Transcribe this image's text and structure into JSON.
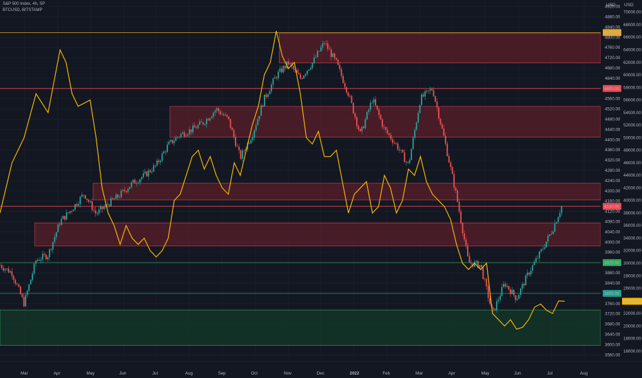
{
  "legend": {
    "main": "S&P 500 Index, 4h, SP",
    "overlay": "BTCUSD, BITSTAMP"
  },
  "axis_units": {
    "left_scale": "USD",
    "right_scale": "USD"
  },
  "colors": {
    "background": "#131722",
    "btc_line": "#f5b800",
    "candle_up": "#26a69a",
    "candle_down": "#ef5350",
    "red_zone": "#5a1f2a",
    "green_zone": "#143a2a"
  },
  "chart_data": {
    "type": "line",
    "x_labels": [
      "Mar",
      "Apr",
      "May",
      "Jun",
      "Jul",
      "Aug",
      "Sep",
      "Oct",
      "Nov",
      "Dec",
      "2022",
      "Feb",
      "Mar",
      "Apr",
      "May",
      "Jun",
      "Jul",
      "Aug"
    ],
    "spx_axis": {
      "ticks": [
        4920,
        4880,
        4840,
        4800,
        4760,
        4720,
        4680,
        4640,
        4600,
        4560,
        4520,
        4480,
        4440,
        4400,
        4360,
        4320,
        4280,
        4240,
        4200,
        4160,
        4120,
        4080,
        4040,
        4000,
        3960,
        3920,
        3880,
        3840,
        3800,
        3760,
        3720,
        3680,
        3640,
        3600,
        3560
      ],
      "range": [
        3550,
        4935
      ]
    },
    "btc_axis": {
      "ticks": [
        70000,
        68000,
        66000,
        64000,
        62000,
        60000,
        58000,
        56000,
        54000,
        52000,
        50000,
        48000,
        46000,
        44000,
        42000,
        40000,
        38000,
        36000,
        34000,
        32000,
        30000,
        28000,
        26000,
        24000,
        22000,
        20000,
        18000,
        16000
      ],
      "range": [
        15000,
        71500
      ]
    },
    "levels": [
      {
        "value": 4818.62,
        "label": "4818.62",
        "color": "#e6a82a"
      },
      {
        "value": 4600.0,
        "label": "4600.00",
        "color": "#e84a55"
      },
      {
        "value": 4140.0,
        "label": "4140.00",
        "color": "#e84a55"
      },
      {
        "value": 3920.0,
        "label": "3920.00",
        "color": "#2eaa5c"
      },
      {
        "value": 3800.0,
        "label": "3800.00",
        "color": "#1f9e8e"
      }
    ],
    "btc_last": {
      "value": 23933.95,
      "label": "23933.95"
    },
    "zones": [
      {
        "kind": "resistance",
        "from": 4700,
        "to": 4815,
        "x_start": 0.465
      },
      {
        "kind": "resistance",
        "from": 4410,
        "to": 4530,
        "x_start": 0.283
      },
      {
        "kind": "resistance",
        "from": 4165,
        "to": 4230,
        "x_start": 0.155
      },
      {
        "kind": "resistance",
        "from": 3985,
        "to": 4075,
        "x_start": 0.058
      },
      {
        "kind": "support",
        "from": 3597,
        "to": 3735,
        "x_start": 0.0
      }
    ],
    "series": [
      {
        "name": "S&P 500 Index, 4h, SP",
        "type": "candles",
        "points": [
          [
            0,
            3910
          ],
          [
            0.02,
            3880
          ],
          [
            0.04,
            3760
          ],
          [
            0.06,
            3930
          ],
          [
            0.08,
            3950
          ],
          [
            0.1,
            4080
          ],
          [
            0.12,
            4130
          ],
          [
            0.14,
            4190
          ],
          [
            0.16,
            4110
          ],
          [
            0.18,
            4150
          ],
          [
            0.2,
            4185
          ],
          [
            0.22,
            4230
          ],
          [
            0.24,
            4260
          ],
          [
            0.26,
            4300
          ],
          [
            0.28,
            4380
          ],
          [
            0.3,
            4420
          ],
          [
            0.32,
            4440
          ],
          [
            0.34,
            4470
          ],
          [
            0.36,
            4520
          ],
          [
            0.38,
            4480
          ],
          [
            0.4,
            4330
          ],
          [
            0.42,
            4420
          ],
          [
            0.44,
            4560
          ],
          [
            0.46,
            4650
          ],
          [
            0.48,
            4700
          ],
          [
            0.5,
            4640
          ],
          [
            0.52,
            4700
          ],
          [
            0.54,
            4780
          ],
          [
            0.56,
            4700
          ],
          [
            0.58,
            4580
          ],
          [
            0.6,
            4420
          ],
          [
            0.62,
            4560
          ],
          [
            0.64,
            4440
          ],
          [
            0.66,
            4380
          ],
          [
            0.68,
            4300
          ],
          [
            0.7,
            4560
          ],
          [
            0.72,
            4600
          ],
          [
            0.74,
            4400
          ],
          [
            0.76,
            4180
          ],
          [
            0.78,
            3920
          ],
          [
            0.8,
            3910
          ],
          [
            0.82,
            3720
          ],
          [
            0.84,
            3840
          ],
          [
            0.86,
            3780
          ],
          [
            0.88,
            3880
          ],
          [
            0.9,
            3960
          ],
          [
            0.92,
            4050
          ],
          [
            0.935,
            4140
          ]
        ]
      },
      {
        "name": "BTCUSD, BITSTAMP",
        "type": "line",
        "points": [
          [
            0,
            38000
          ],
          [
            0.02,
            46000
          ],
          [
            0.04,
            50000
          ],
          [
            0.06,
            57000
          ],
          [
            0.08,
            54000
          ],
          [
            0.09,
            59000
          ],
          [
            0.1,
            64000
          ],
          [
            0.11,
            62000
          ],
          [
            0.12,
            57000
          ],
          [
            0.13,
            55000
          ],
          [
            0.15,
            56000
          ],
          [
            0.16,
            50000
          ],
          [
            0.17,
            42000
          ],
          [
            0.18,
            38000
          ],
          [
            0.19,
            36000
          ],
          [
            0.2,
            33000
          ],
          [
            0.21,
            36000
          ],
          [
            0.22,
            34000
          ],
          [
            0.23,
            33000
          ],
          [
            0.24,
            34000
          ],
          [
            0.25,
            32000
          ],
          [
            0.26,
            31000
          ],
          [
            0.27,
            32000
          ],
          [
            0.28,
            34000
          ],
          [
            0.29,
            40000
          ],
          [
            0.3,
            41000
          ],
          [
            0.31,
            44000
          ],
          [
            0.32,
            47000
          ],
          [
            0.33,
            48000
          ],
          [
            0.34,
            45000
          ],
          [
            0.35,
            47000
          ],
          [
            0.36,
            44000
          ],
          [
            0.37,
            42000
          ],
          [
            0.38,
            41000
          ],
          [
            0.39,
            46000
          ],
          [
            0.4,
            44000
          ],
          [
            0.41,
            48000
          ],
          [
            0.42,
            52000
          ],
          [
            0.43,
            55000
          ],
          [
            0.44,
            60000
          ],
          [
            0.45,
            62000
          ],
          [
            0.46,
            67000
          ],
          [
            0.47,
            63000
          ],
          [
            0.48,
            61000
          ],
          [
            0.49,
            62000
          ],
          [
            0.5,
            57000
          ],
          [
            0.51,
            50000
          ],
          [
            0.52,
            49000
          ],
          [
            0.53,
            51000
          ],
          [
            0.54,
            47000
          ],
          [
            0.55,
            47000
          ],
          [
            0.56,
            48000
          ],
          [
            0.57,
            43000
          ],
          [
            0.58,
            38000
          ],
          [
            0.59,
            41000
          ],
          [
            0.6,
            42000
          ],
          [
            0.61,
            43000
          ],
          [
            0.62,
            38000
          ],
          [
            0.63,
            39000
          ],
          [
            0.64,
            44000
          ],
          [
            0.65,
            42000
          ],
          [
            0.66,
            38000
          ],
          [
            0.67,
            40000
          ],
          [
            0.68,
            45000
          ],
          [
            0.69,
            44000
          ],
          [
            0.7,
            47000
          ],
          [
            0.71,
            43000
          ],
          [
            0.72,
            41000
          ],
          [
            0.73,
            40000
          ],
          [
            0.74,
            39000
          ],
          [
            0.75,
            37000
          ],
          [
            0.76,
            33000
          ],
          [
            0.77,
            30000
          ],
          [
            0.78,
            29000
          ],
          [
            0.79,
            30000
          ],
          [
            0.8,
            29000
          ],
          [
            0.81,
            30000
          ],
          [
            0.82,
            22000
          ],
          [
            0.83,
            21000
          ],
          [
            0.84,
            20000
          ],
          [
            0.85,
            21000
          ],
          [
            0.86,
            19500
          ],
          [
            0.87,
            19800
          ],
          [
            0.88,
            21000
          ],
          [
            0.89,
            23000
          ],
          [
            0.9,
            23500
          ],
          [
            0.91,
            22500
          ],
          [
            0.92,
            22000
          ],
          [
            0.93,
            24000
          ],
          [
            0.94,
            23934
          ]
        ]
      }
    ]
  }
}
